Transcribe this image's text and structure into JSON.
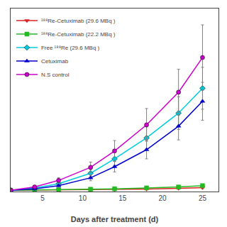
{
  "chart_data": {
    "type": "line",
    "xlabel": "Days after treatment (d)",
    "xlim": [
      1,
      27
    ],
    "xticks": [
      5,
      10,
      15,
      20,
      25
    ],
    "ylim": [
      0,
      2800
    ],
    "tick_labels": "x",
    "grid": false,
    "legend": "upper left",
    "series": [
      {
        "name": "¹⁸⁸Re-Cetuximab (29.6 MBq )",
        "color": "#dd2222",
        "marker": "triangle-down",
        "x": [
          1,
          4,
          7,
          11,
          14,
          18,
          22,
          25
        ],
        "values": [
          20,
          22,
          25,
          28,
          32,
          38,
          48,
          60
        ],
        "yerr": [
          5,
          5,
          6,
          6,
          8,
          10,
          12,
          15
        ]
      },
      {
        "name": "¹⁸⁸Re-Cetuximab (22.2 MBq )",
        "color": "#22bb22",
        "marker": "square",
        "x": [
          1,
          4,
          7,
          11,
          14,
          18,
          22,
          25
        ],
        "values": [
          20,
          25,
          30,
          35,
          42,
          55,
          70,
          90
        ],
        "yerr": [
          5,
          6,
          7,
          8,
          10,
          12,
          15,
          18
        ]
      },
      {
        "name": "Free ¹⁸⁸Re (29.6 MBq )",
        "color": "#00ccdd",
        "marker": "diamond",
        "x": [
          1,
          4,
          7,
          11,
          14,
          18,
          22,
          25
        ],
        "values": [
          20,
          55,
          120,
          280,
          500,
          820,
          1200,
          1580
        ],
        "yerr": [
          5,
          15,
          30,
          55,
          100,
          170,
          250,
          320
        ]
      },
      {
        "name": "Cetuximab",
        "color": "#0000cc",
        "marker": "triangle-up",
        "x": [
          1,
          4,
          7,
          11,
          14,
          18,
          22,
          25
        ],
        "values": [
          20,
          40,
          90,
          210,
          380,
          640,
          1000,
          1380
        ],
        "yerr": [
          5,
          10,
          22,
          45,
          80,
          140,
          210,
          290
        ]
      },
      {
        "name": "N.S control",
        "color": "#cc00cc",
        "marker": "circle",
        "x": [
          1,
          4,
          7,
          11,
          14,
          18,
          22,
          25
        ],
        "values": [
          20,
          70,
          170,
          370,
          620,
          1020,
          1520,
          2050
        ],
        "yerr": [
          5,
          18,
          40,
          80,
          160,
          250,
          350,
          500
        ]
      }
    ]
  }
}
